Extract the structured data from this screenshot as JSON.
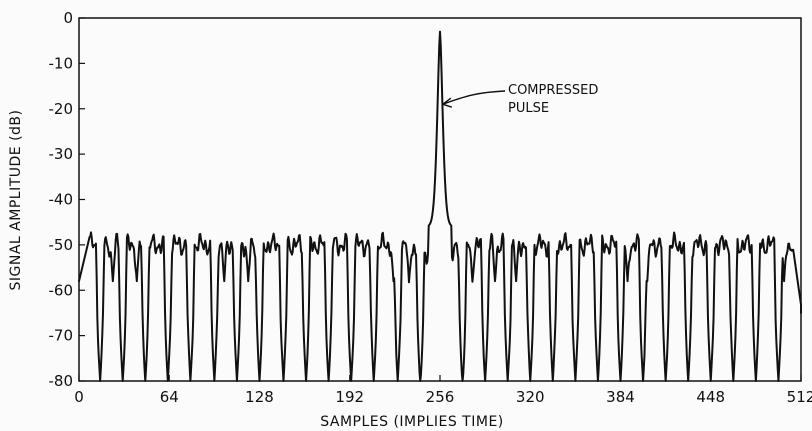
{
  "chart_data": {
    "type": "line",
    "title": "",
    "xlabel": "SAMPLES (IMPLIES TIME)",
    "ylabel": "SIGNAL AMPLITUDE (dB)",
    "xlim": [
      0,
      512
    ],
    "ylim": [
      -80,
      0
    ],
    "xticks": [
      0,
      64,
      128,
      192,
      256,
      320,
      384,
      448,
      512
    ],
    "yticks": [
      0,
      -10,
      -20,
      -30,
      -40,
      -50,
      -60,
      -70,
      -80
    ],
    "grid": false,
    "legend": "none",
    "line_color": "#111111",
    "series": [
      {
        "peak_x": 256,
        "peak_y": -3,
        "mainlobe_base_y": -46,
        "sidelobe_level_y": -50,
        "sidelobe_band": [
          -47,
          -55
        ],
        "null_floor_y": -80,
        "null_x": [
          15,
          31,
          47,
          63,
          79,
          96,
          112,
          128,
          145,
          161,
          177,
          193,
          209,
          226,
          242,
          272,
          288,
          304,
          320,
          336,
          352,
          368,
          384,
          400,
          416,
          432,
          448,
          464,
          480,
          496
        ],
        "partial_null_x": [
          24,
          41,
          103,
          120,
          223,
          234,
          279,
          295,
          310,
          389,
          403,
          500
        ],
        "partial_null_depth_y": -58,
        "end_x": 512,
        "end_y": -65
      }
    ]
  },
  "annotation": {
    "line1": "COMPRESSED",
    "line2": "PULSE",
    "target_x": 258,
    "target_y": -19
  }
}
